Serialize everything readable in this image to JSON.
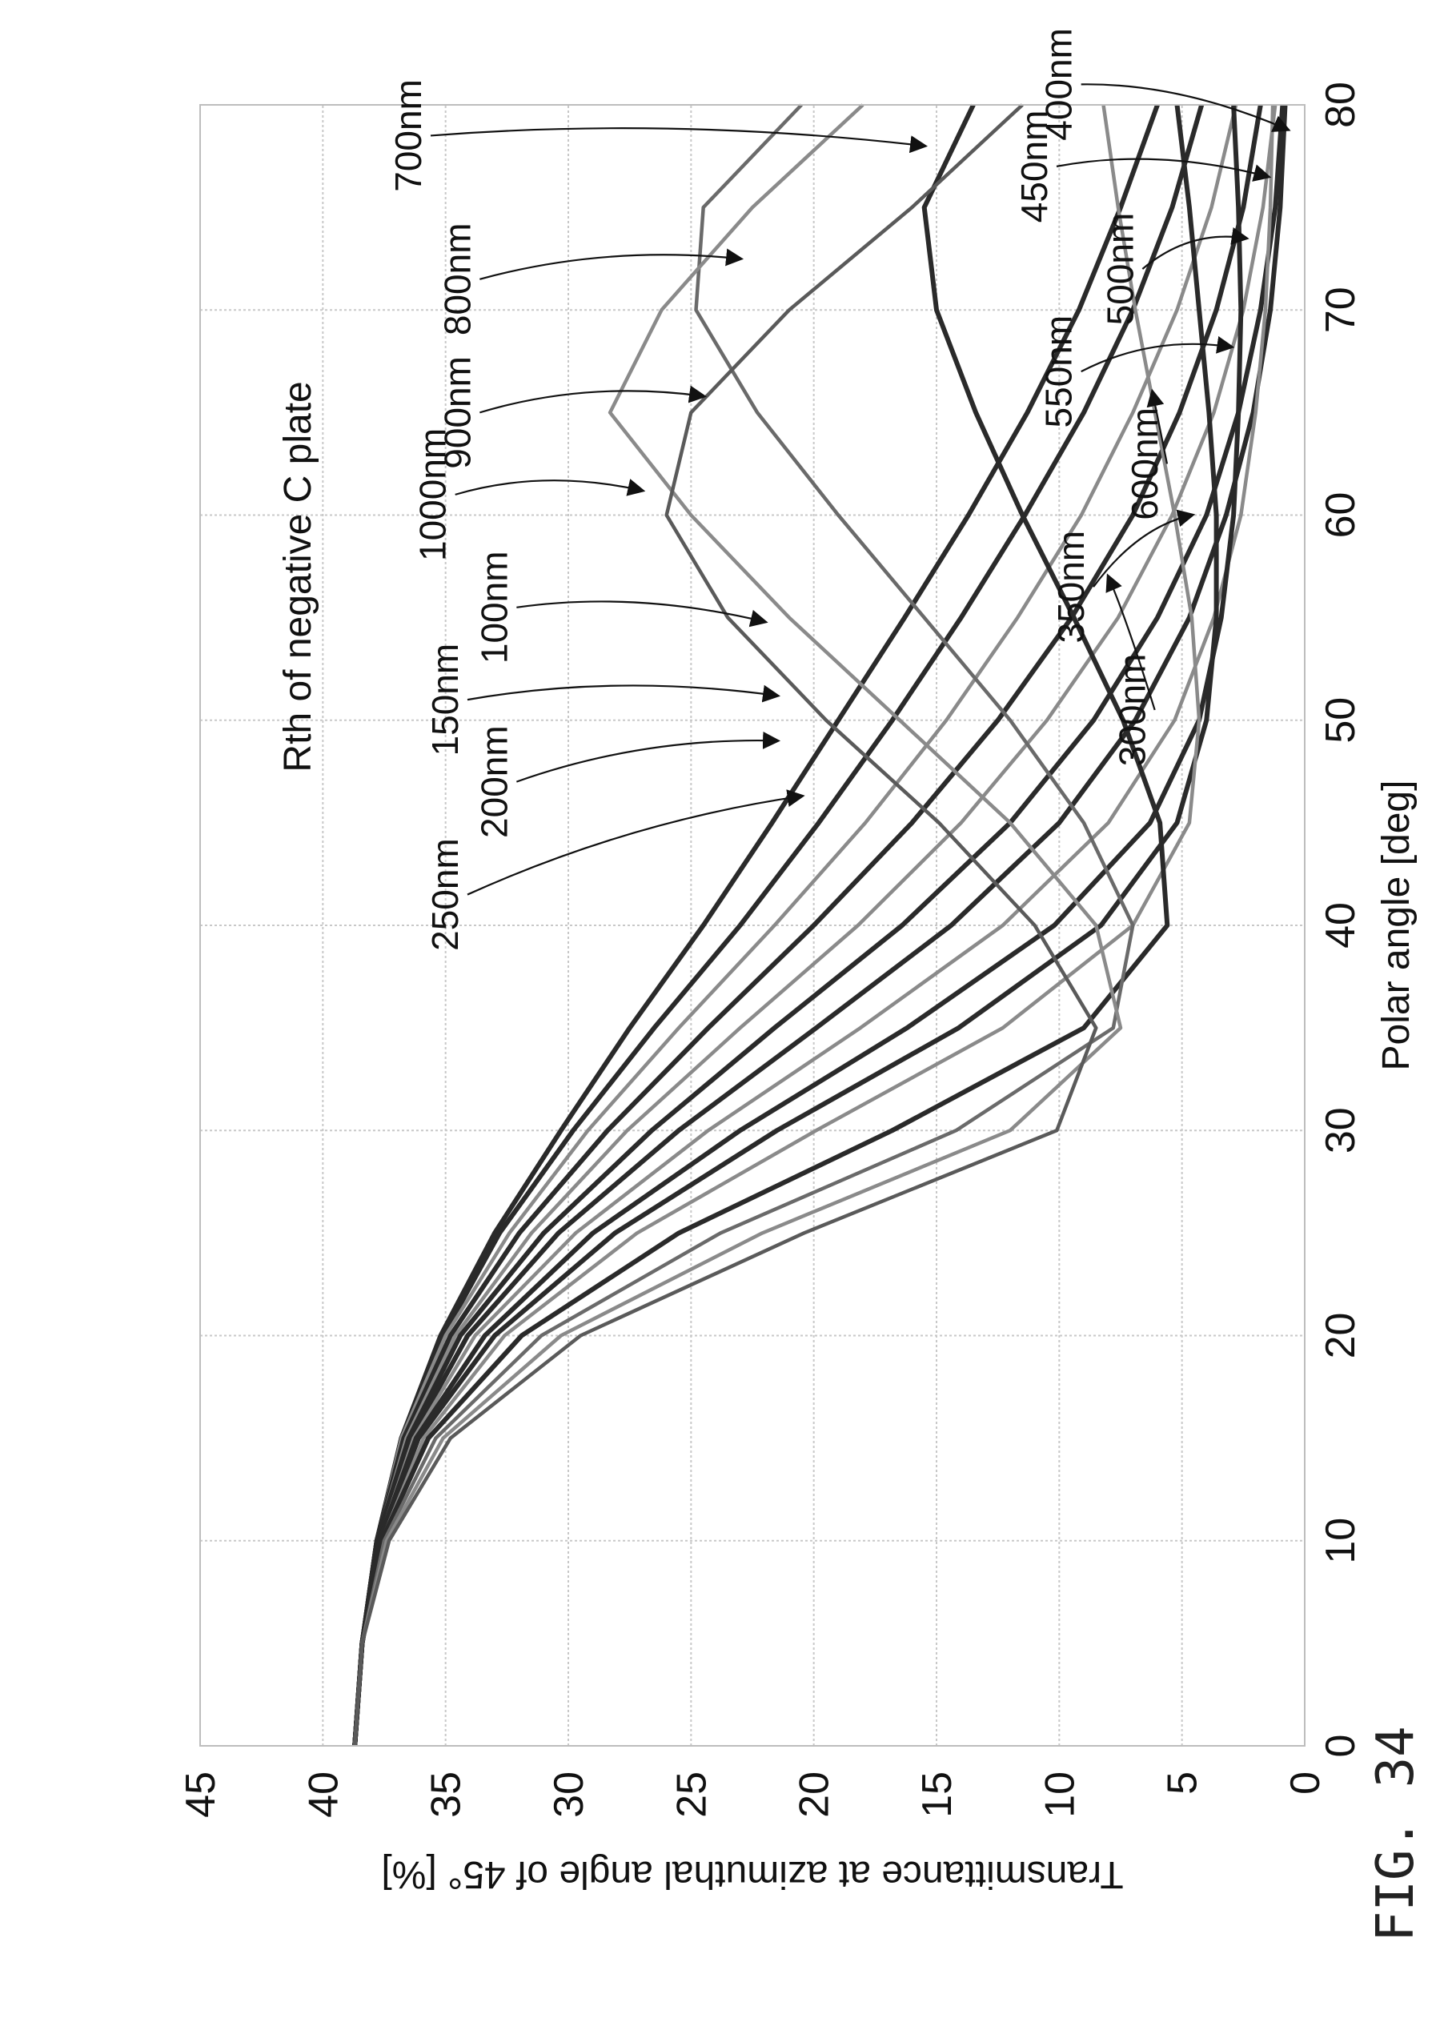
{
  "figure_label": "FIG. 34",
  "chart_data": {
    "type": "line",
    "title": "Rth of negative C plate",
    "xlabel": "Polar angle [deg]",
    "ylabel": "Transmittance at azimuthal angle of 45°  [%]",
    "xlim": [
      0,
      80
    ],
    "ylim": [
      0,
      45
    ],
    "x_ticks": [
      0,
      10,
      20,
      30,
      40,
      50,
      60,
      70,
      80
    ],
    "y_ticks": [
      0,
      5,
      10,
      15,
      20,
      25,
      30,
      35,
      40,
      45
    ],
    "grid": true,
    "x": [
      0,
      5,
      10,
      15,
      20,
      25,
      30,
      35,
      40,
      45,
      50,
      55,
      60,
      65,
      70,
      75,
      80
    ],
    "series": [
      {
        "name": "100nm",
        "color": "#2a2a2a",
        "values": [
          38.7,
          38.4,
          37.8,
          36.8,
          35.2,
          33.0,
          30.3,
          27.5,
          24.5,
          21.7,
          19.0,
          16.3,
          13.7,
          11.3,
          9.2,
          7.5,
          6.0
        ]
      },
      {
        "name": "150nm",
        "color": "#2a2a2a",
        "values": [
          38.7,
          38.4,
          37.8,
          36.8,
          35.1,
          32.8,
          29.8,
          26.5,
          23.0,
          19.8,
          16.8,
          14.0,
          11.4,
          9.0,
          7.0,
          5.4,
          4.2
        ]
      },
      {
        "name": "200nm",
        "color": "#8a8a8a",
        "values": [
          38.7,
          38.4,
          37.8,
          36.8,
          35.0,
          32.4,
          29.2,
          25.5,
          21.6,
          17.9,
          14.6,
          11.7,
          9.1,
          7.0,
          5.2,
          3.8,
          2.8
        ]
      },
      {
        "name": "250nm",
        "color": "#2a2a2a",
        "values": [
          38.7,
          38.4,
          37.8,
          36.7,
          34.8,
          32.0,
          28.4,
          24.3,
          20.0,
          16.0,
          12.5,
          9.5,
          7.0,
          5.1,
          3.6,
          2.5,
          1.8
        ]
      },
      {
        "name": "300nm",
        "color": "#8a8a8a",
        "values": [
          38.7,
          38.4,
          37.8,
          36.6,
          34.6,
          31.5,
          27.6,
          23.0,
          18.2,
          14.0,
          10.5,
          7.6,
          5.4,
          3.7,
          2.5,
          1.7,
          1.2
        ]
      },
      {
        "name": "350nm",
        "color": "#2a2a2a",
        "values": [
          38.7,
          38.4,
          37.8,
          36.5,
          34.4,
          31.0,
          26.6,
          21.6,
          16.4,
          12.0,
          8.6,
          6.0,
          4.0,
          2.7,
          1.8,
          1.2,
          0.9
        ]
      },
      {
        "name": "400nm",
        "color": "#2a2a2a",
        "values": [
          38.7,
          38.4,
          37.7,
          36.4,
          34.1,
          30.4,
          25.5,
          19.9,
          14.4,
          10.0,
          6.9,
          4.7,
          3.2,
          2.1,
          1.4,
          1.0,
          0.8
        ]
      },
      {
        "name": "450nm",
        "color": "#8a8a8a",
        "values": [
          38.7,
          38.4,
          37.7,
          36.3,
          33.8,
          29.7,
          24.3,
          18.1,
          12.3,
          8.0,
          5.3,
          3.7,
          2.6,
          2.0,
          1.6,
          1.4,
          1.3
        ]
      },
      {
        "name": "500nm",
        "color": "#2a2a2a",
        "values": [
          38.7,
          38.4,
          37.7,
          36.2,
          33.4,
          29.0,
          23.0,
          16.2,
          10.2,
          6.3,
          4.3,
          3.4,
          2.9,
          2.7,
          2.6,
          2.7,
          2.9
        ]
      },
      {
        "name": "550nm",
        "color": "#2a2a2a",
        "values": [
          38.7,
          38.4,
          37.7,
          36.1,
          33.0,
          28.1,
          21.5,
          14.1,
          8.3,
          5.2,
          4.0,
          3.6,
          3.6,
          3.9,
          4.3,
          4.7,
          5.2
        ]
      },
      {
        "name": "600nm",
        "color": "#8a8a8a",
        "values": [
          38.7,
          38.4,
          37.6,
          35.9,
          32.6,
          27.2,
          19.9,
          12.3,
          7.0,
          4.7,
          4.3,
          4.6,
          5.3,
          6.1,
          6.9,
          7.6,
          8.2
        ]
      },
      {
        "name": "700nm",
        "color": "#2a2a2a",
        "values": [
          38.7,
          38.4,
          37.6,
          35.7,
          31.9,
          25.5,
          16.8,
          9.0,
          5.6,
          5.9,
          7.4,
          9.4,
          11.5,
          13.4,
          15.0,
          15.5,
          13.5
        ]
      },
      {
        "name": "800nm",
        "color": "#6a6a6a",
        "values": [
          38.7,
          38.4,
          37.5,
          35.4,
          31.1,
          23.8,
          14.2,
          7.8,
          7.0,
          9.0,
          12.0,
          15.5,
          19.0,
          22.3,
          24.8,
          24.5,
          20.5
        ]
      },
      {
        "name": "900nm",
        "color": "#8a8a8a",
        "values": [
          38.7,
          38.4,
          37.4,
          35.1,
          30.3,
          22.1,
          12.0,
          7.5,
          8.5,
          12.0,
          16.5,
          21.0,
          25.0,
          28.3,
          26.2,
          22.5,
          18.0
        ]
      },
      {
        "name": "1000nm",
        "color": "#5a5a5a",
        "values": [
          38.7,
          38.4,
          37.3,
          34.8,
          29.5,
          20.4,
          10.1,
          8.5,
          11.0,
          14.9,
          19.5,
          23.5,
          26.0,
          25.0,
          21.0,
          16.0,
          11.5
        ]
      }
    ],
    "annotations": [
      "100nm",
      "150nm",
      "200nm",
      "250nm",
      "300nm",
      "350nm",
      "400nm",
      "450nm",
      "500nm",
      "550nm",
      "600nm",
      "700nm",
      "800nm",
      "900nm",
      "1000nm"
    ]
  }
}
